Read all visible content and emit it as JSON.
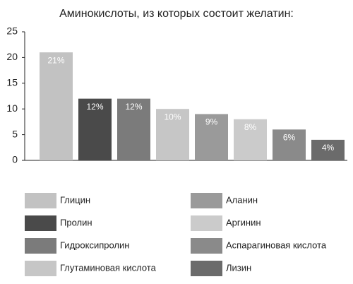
{
  "chart_data": {
    "type": "bar",
    "title": "Аминокислоты, из которых состоит желатин:",
    "categories": [
      "Глицин",
      "Пролин",
      "Гидроксипролин",
      "Глутаминовая кислота",
      "Аланин",
      "Аргинин",
      "Аспарагиновая кислота",
      "Лизин"
    ],
    "values": [
      21,
      12,
      12,
      10,
      9,
      8,
      6,
      4
    ],
    "value_labels": [
      "21%",
      "12%",
      "12%",
      "10%",
      "9%",
      "8%",
      "6%",
      "4%"
    ],
    "colors": [
      "#c2c2c2",
      "#4a4a4a",
      "#7b7b7b",
      "#c6c6c6",
      "#9a9a9a",
      "#cbcbcb",
      "#8a8a8a",
      "#6b6b6b"
    ],
    "ylim": [
      0,
      25
    ],
    "yticks": [
      0,
      5,
      10,
      15,
      20,
      25
    ],
    "legend": "bottom"
  }
}
